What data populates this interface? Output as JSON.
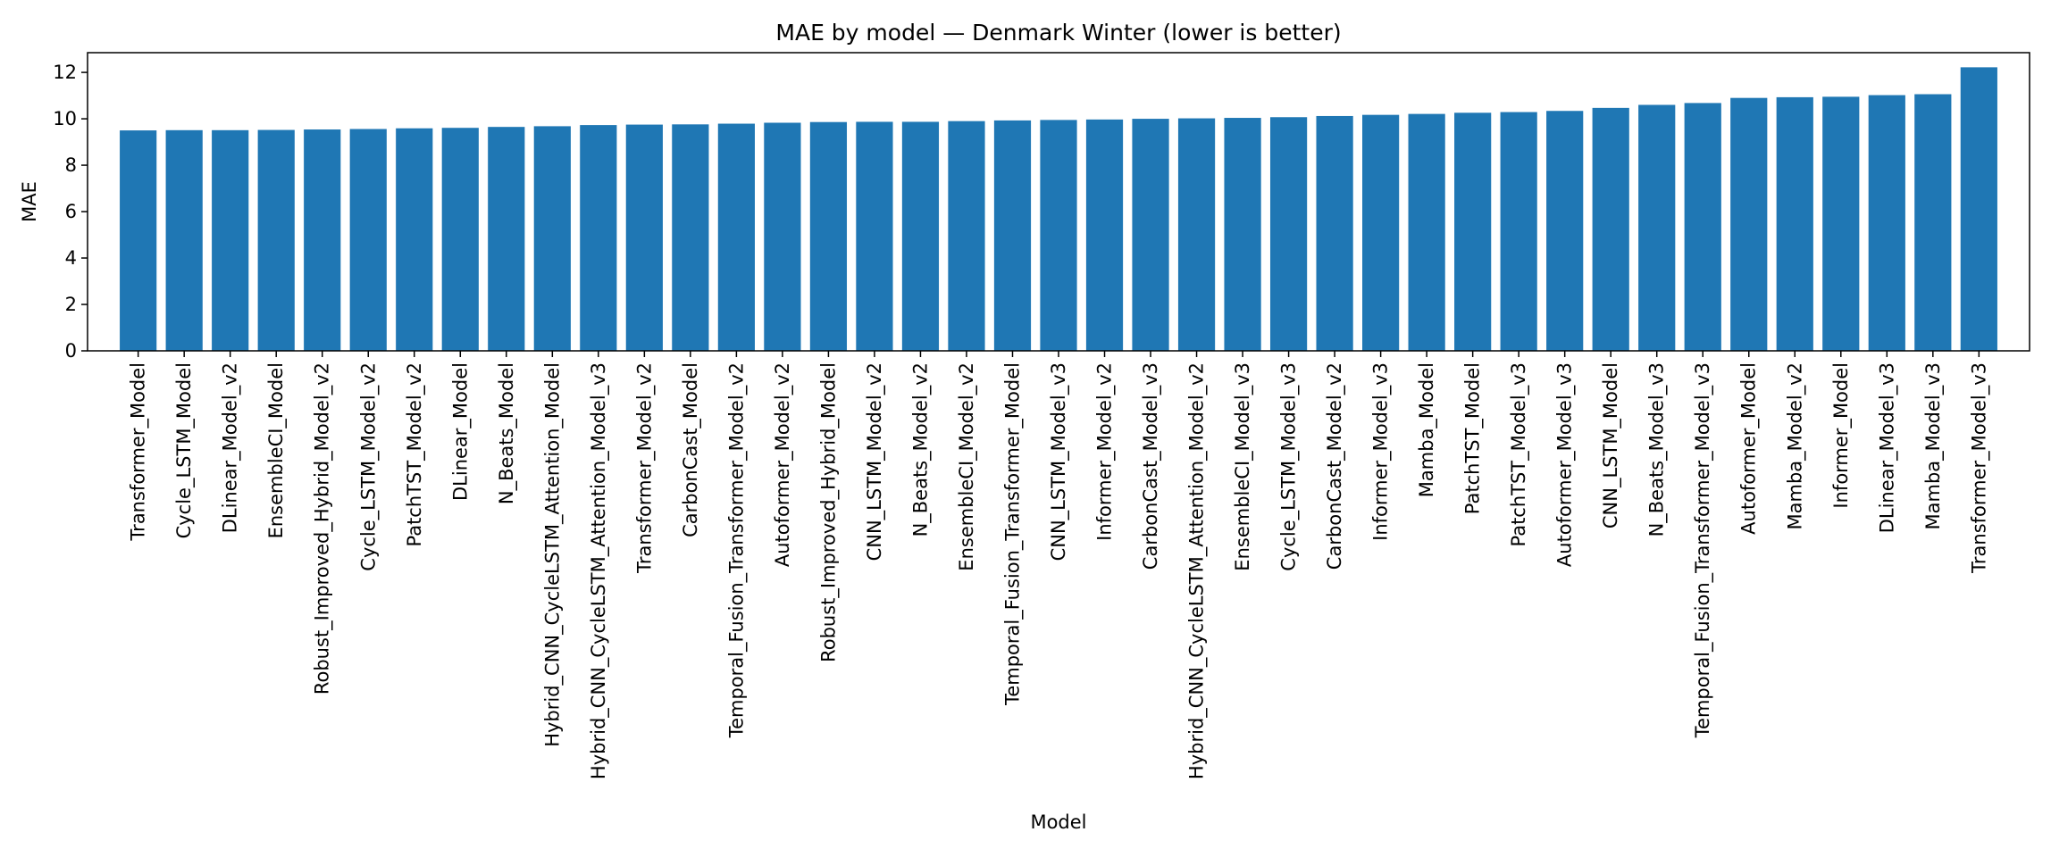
{
  "chart_data": {
    "type": "bar",
    "title": "MAE by model — Denmark Winter (lower is better)",
    "xlabel": "Model",
    "ylabel": "MAE",
    "ylim": [
      0,
      12.85
    ],
    "yticks": [
      0,
      2,
      4,
      6,
      8,
      10,
      12
    ],
    "grid": false,
    "bar_color": "#1f77b4",
    "categories": [
      "Transformer_Model",
      "Cycle_LSTM_Model",
      "DLinear_Model_v2",
      "EnsembleCI_Model",
      "Robust_Improved_Hybrid_Model_v2",
      "Cycle_LSTM_Model_v2",
      "PatchTST_Model_v2",
      "DLinear_Model",
      "N_Beats_Model",
      "Hybrid_CNN_CycleLSTM_Attention_Model",
      "Hybrid_CNN_CycleLSTM_Attention_Model_v3",
      "Transformer_Model_v2",
      "CarbonCast_Model",
      "Temporal_Fusion_Transformer_Model_v2",
      "Autoformer_Model_v2",
      "Robust_Improved_Hybrid_Model",
      "CNN_LSTM_Model_v2",
      "N_Beats_Model_v2",
      "EnsembleCI_Model_v2",
      "Temporal_Fusion_Transformer_Model",
      "CNN_LSTM_Model_v3",
      "Informer_Model_v2",
      "CarbonCast_Model_v3",
      "Hybrid_CNN_CycleLSTM_Attention_Model_v2",
      "EnsembleCI_Model_v3",
      "Cycle_LSTM_Model_v3",
      "CarbonCast_Model_v2",
      "Informer_Model_v3",
      "Mamba_Model",
      "PatchTST_Model",
      "PatchTST_Model_v3",
      "Autoformer_Model_v3",
      "CNN_LSTM_Model",
      "N_Beats_Model_v3",
      "Temporal_Fusion_Transformer_Model_v3",
      "Autoformer_Model",
      "Mamba_Model_v2",
      "Informer_Model",
      "DLinear_Model_v3",
      "Mamba_Model_v3",
      "Transformer_Model_v3"
    ],
    "values": [
      9.5,
      9.51,
      9.51,
      9.52,
      9.54,
      9.56,
      9.59,
      9.61,
      9.65,
      9.68,
      9.73,
      9.75,
      9.76,
      9.79,
      9.83,
      9.86,
      9.87,
      9.87,
      9.9,
      9.93,
      9.95,
      9.97,
      10.0,
      10.02,
      10.04,
      10.07,
      10.12,
      10.17,
      10.21,
      10.26,
      10.29,
      10.34,
      10.47,
      10.6,
      10.68,
      10.9,
      10.93,
      10.95,
      11.02,
      11.06,
      12.22
    ]
  }
}
